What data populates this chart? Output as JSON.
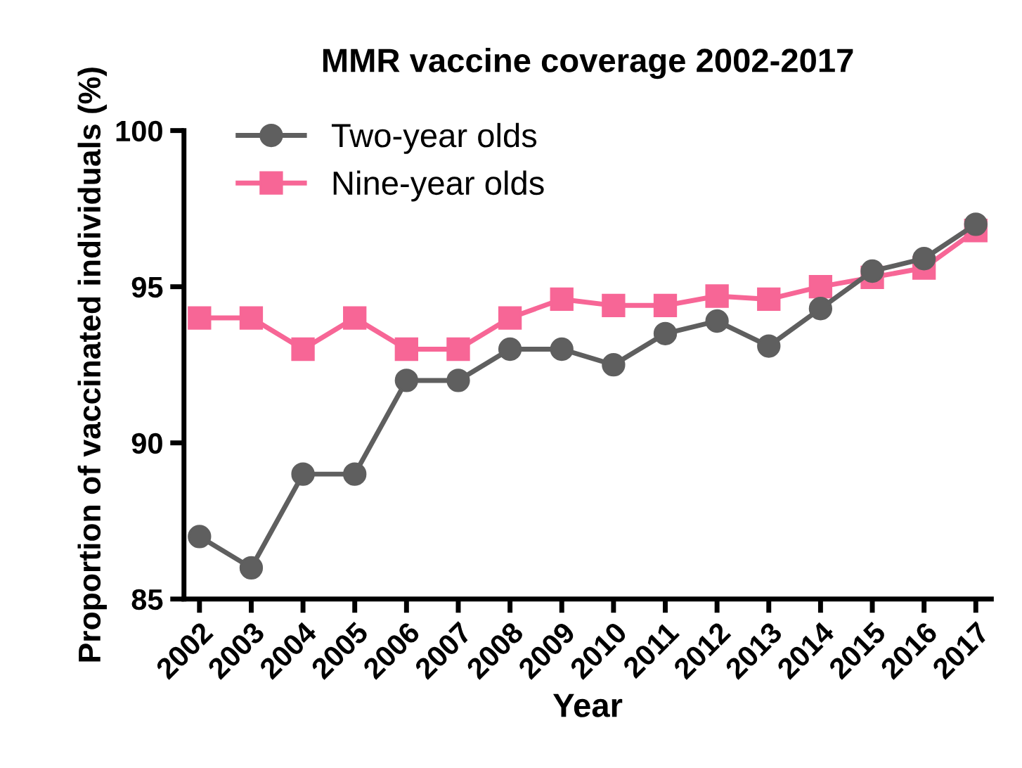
{
  "chart_data": {
    "type": "line",
    "title": "MMR vaccine coverage 2002-2017",
    "xlabel": "Year",
    "ylabel": "Proportion of vaccinated individuals (%)",
    "categories": [
      "2002",
      "2003",
      "2004",
      "2005",
      "2006",
      "2007",
      "2008",
      "2009",
      "2010",
      "2011",
      "2012",
      "2013",
      "2014",
      "2015",
      "2016",
      "2017"
    ],
    "series": [
      {
        "name": "Two-year olds",
        "color": "#5f5f5f",
        "marker": "circle",
        "values": [
          87,
          86,
          89,
          89,
          92,
          92,
          93,
          93,
          92.5,
          93.5,
          93.9,
          93.1,
          94.3,
          95.5,
          95.9,
          97.0
        ]
      },
      {
        "name": "Nine-year olds",
        "color": "#f76696",
        "marker": "square",
        "values": [
          94,
          94,
          93,
          94,
          93,
          93,
          94,
          94.6,
          94.4,
          94.4,
          94.7,
          94.6,
          95.0,
          95.3,
          95.6,
          96.8
        ]
      }
    ],
    "ylim": [
      85,
      100
    ],
    "yticks": [
      85,
      90,
      95,
      100
    ],
    "grid": false,
    "legend": "top left",
    "line_style": "solid"
  }
}
